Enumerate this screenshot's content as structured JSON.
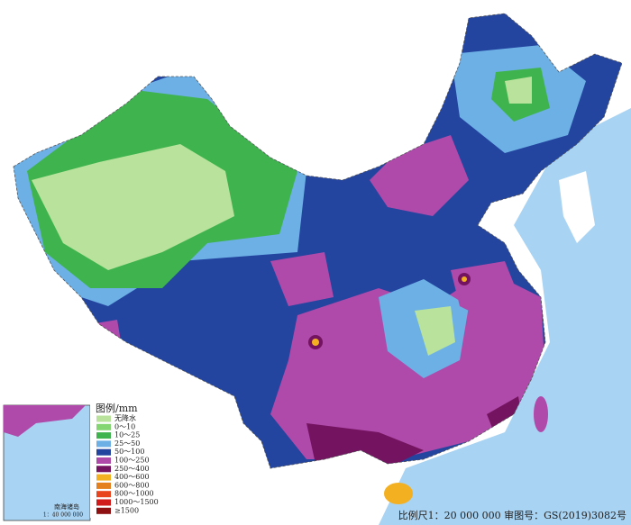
{
  "legend": {
    "title": "图例/mm",
    "items": [
      {
        "label": "无降水",
        "color": "#b9e39c"
      },
      {
        "label": "0～10",
        "color": "#84d673"
      },
      {
        "label": "10～25",
        "color": "#3fb44e"
      },
      {
        "label": "25～50",
        "color": "#6cb0e6"
      },
      {
        "label": "50～100",
        "color": "#23449f"
      },
      {
        "label": "100～250",
        "color": "#b04aaa"
      },
      {
        "label": "250～400",
        "color": "#741461"
      },
      {
        "label": "400～600",
        "color": "#f3b021"
      },
      {
        "label": "600～800",
        "color": "#e5801f"
      },
      {
        "label": "800～1000",
        "color": "#e8441e"
      },
      {
        "label": "1000～1500",
        "color": "#d11a1a"
      },
      {
        "label": "≥1500",
        "color": "#8e1010"
      }
    ]
  },
  "scale_note": "比例尺1：20 000 000  审图号：GS(2019)3082号",
  "inset": {
    "title": "南海诸岛",
    "scale": "1：40 000 000"
  }
}
